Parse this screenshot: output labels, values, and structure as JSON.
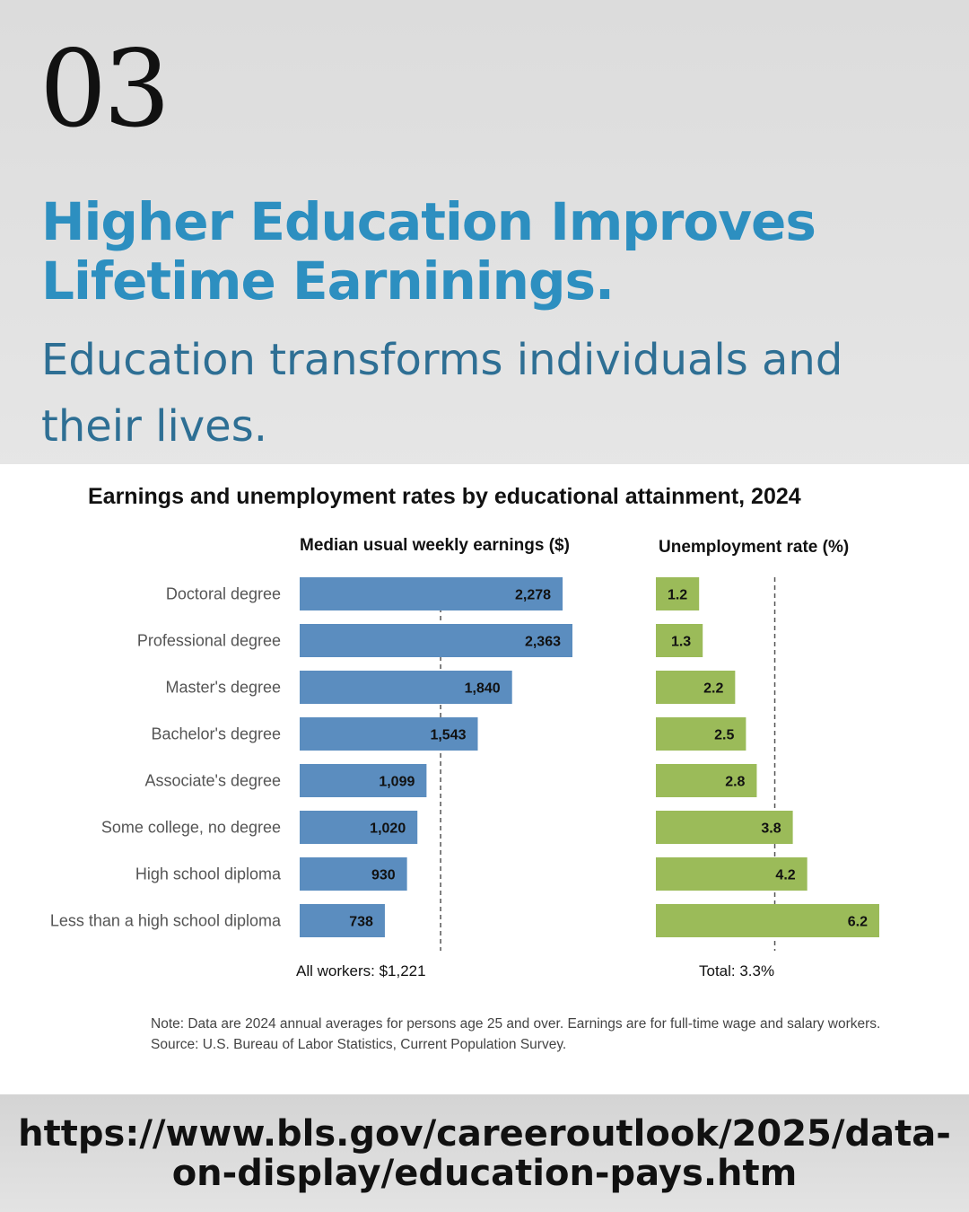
{
  "slide": {
    "number": "03"
  },
  "headline": "Higher Education Improves Lifetime Earninings.",
  "subhead": "Education transforms individuals and their lives.",
  "url": "https://www.bls.gov/careeroutlook/2025/data-on-display/education-pays.htm",
  "colors": {
    "earnings_bar": "#5b8dbf",
    "unemployment_bar": "#9bbb59",
    "headline": "#2d8fc0",
    "subhead": "#2e6f94"
  },
  "chart_data": {
    "type": "bar",
    "title": "Earnings and unemployment rates by educational attainment, 2024",
    "categories": [
      "Doctoral degree",
      "Professional degree",
      "Master's degree",
      "Bachelor's degree",
      "Associate's degree",
      "Some college, no degree",
      "High school diploma",
      "Less than a high school diploma"
    ],
    "series": [
      {
        "name": "Median usual weekly earnings ($)",
        "values": [
          2278,
          2363,
          1840,
          1543,
          1099,
          1020,
          930,
          738
        ],
        "value_labels": [
          "2,278",
          "2,363",
          "1,840",
          "1,543",
          "1,099",
          "1,020",
          "930",
          "738"
        ],
        "reference_value": 1221,
        "reference_label": "All workers: $1,221",
        "xlim": [
          0,
          2363
        ]
      },
      {
        "name": "Unemployment rate (%)",
        "values": [
          1.2,
          1.3,
          2.2,
          2.5,
          2.8,
          3.8,
          4.2,
          6.2
        ],
        "value_labels": [
          "1.2",
          "1.3",
          "2.2",
          "2.5",
          "2.8",
          "3.8",
          "4.2",
          "6.2"
        ],
        "reference_value": 3.3,
        "reference_label": "Total: 3.3%",
        "xlim": [
          0,
          6.2
        ]
      }
    ],
    "note": "Note: Data are 2024 annual averages for persons age 25 and over. Earnings are for full-time wage and salary workers.",
    "source": "Source: U.S. Bureau of Labor Statistics, Current Population Survey."
  }
}
